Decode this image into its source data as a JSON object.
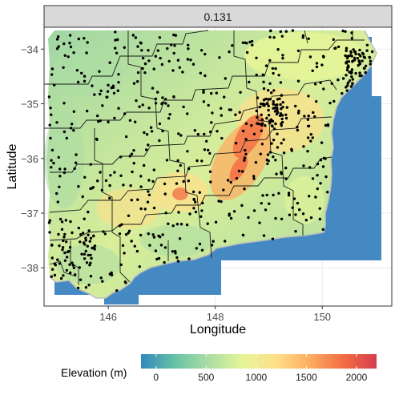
{
  "panel": {
    "strip_label": "0.131"
  },
  "axes": {
    "x_title": "Longitude",
    "y_title": "Latitude",
    "x_ticks": [
      {
        "value": 146,
        "label": "146"
      },
      {
        "value": 148,
        "label": "148"
      },
      {
        "value": 150,
        "label": "150"
      }
    ],
    "y_ticks": [
      {
        "value": -34,
        "label": "−34"
      },
      {
        "value": -35,
        "label": "−35"
      },
      {
        "value": -36,
        "label": "−36"
      },
      {
        "value": -37,
        "label": "−37"
      },
      {
        "value": -38,
        "label": "−38"
      }
    ],
    "xlim": [
      144.8,
      151.3
    ],
    "ylim": [
      -38.7,
      -33.6
    ]
  },
  "legend": {
    "title": "Elevation (m)",
    "range": [
      -150,
      2200
    ],
    "ticks": [
      {
        "value": 0,
        "label": "0"
      },
      {
        "value": 500,
        "label": "500"
      },
      {
        "value": 1000,
        "label": "1000"
      },
      {
        "value": 1500,
        "label": "1500"
      },
      {
        "value": 2000,
        "label": "2000"
      }
    ],
    "palette": [
      "#3288bd",
      "#66c2a5",
      "#abdda4",
      "#e6f598",
      "#fee08b",
      "#fdae61",
      "#f46d43",
      "#d53e4f"
    ]
  },
  "colors": {
    "ocean": "#4589c2",
    "points": "#000000",
    "boundaries": "#1a1a1a",
    "coastline": "#bdbdbd",
    "strip_bg": "#d9d9d9",
    "panel_border": "#333333",
    "grid": "#ebebeb"
  }
}
